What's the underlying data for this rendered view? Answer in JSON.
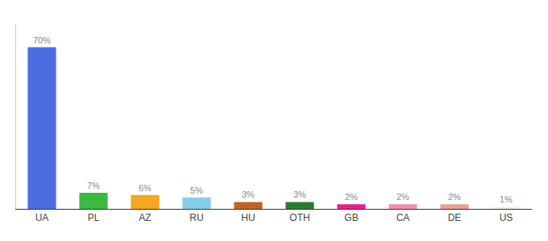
{
  "chart_data": {
    "type": "bar",
    "categories": [
      "UA",
      "PL",
      "AZ",
      "RU",
      "HU",
      "OTH",
      "GB",
      "CA",
      "DE",
      "US"
    ],
    "values": [
      70,
      7,
      6,
      5,
      3,
      3,
      2,
      2,
      2,
      1
    ],
    "value_labels": [
      "70%",
      "7%",
      "6%",
      "5%",
      "3%",
      "3%",
      "2%",
      "2%",
      "2%",
      "1%"
    ],
    "colors": [
      "#4a6ee0",
      "#3cb843",
      "#f5a623",
      "#87ceeb",
      "#c0622a",
      "#2d7a2d",
      "#e91e8c",
      "#f48fb1",
      "#e8a090",
      "#f5f5dc"
    ],
    "ylim": [
      0,
      80
    ],
    "grid": false,
    "data_labels": true,
    "tick_labels": "x"
  }
}
